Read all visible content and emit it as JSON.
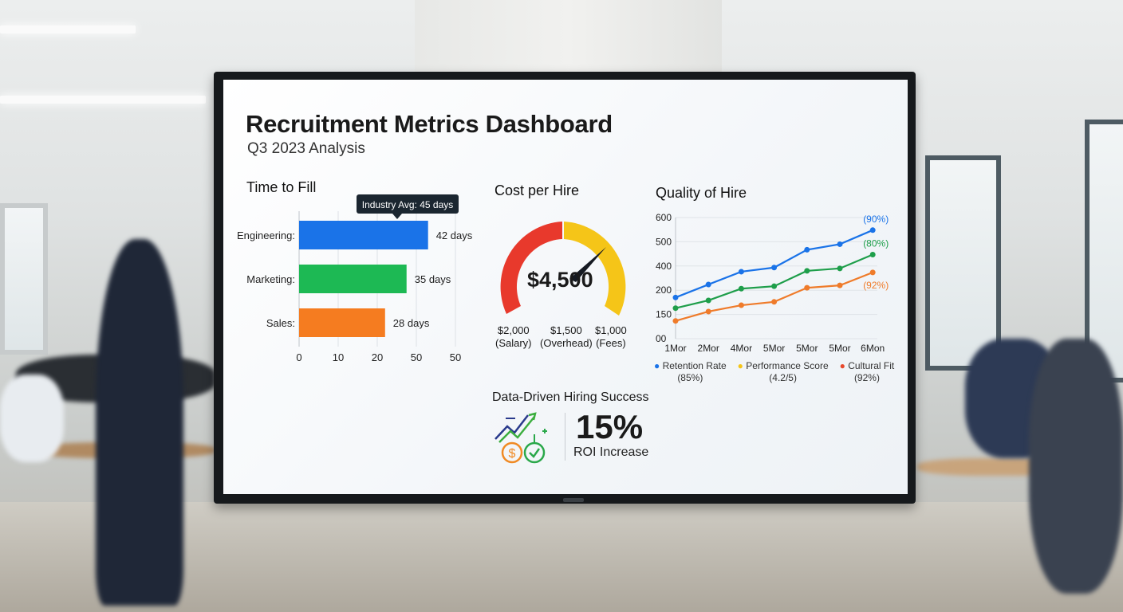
{
  "dashboard": {
    "title": "Recruitment Metrics Dashboard",
    "subtitle": "Q3 2023 Analysis"
  },
  "chart_data": [
    {
      "type": "bar",
      "orientation": "horizontal",
      "title": "Time to Fill",
      "categories": [
        "Engineering:",
        "Marketing:",
        "Sales:"
      ],
      "values": [
        42,
        35,
        28
      ],
      "value_labels": [
        "42 days",
        "35 days",
        "28 days"
      ],
      "colors": [
        "#1a73e8",
        "#1db954",
        "#f57c20"
      ],
      "x_tick_labels": [
        "0",
        "10",
        "20",
        "50",
        "50"
      ],
      "annotation": "Industry Avg: 45 days",
      "grid": true
    },
    {
      "type": "gauge",
      "title": "Cost per Hire",
      "value_label": "$4,500",
      "segments": [
        {
          "amount": "$2,000",
          "label": "(Salary)",
          "color": "#e8392c"
        },
        {
          "amount": "$1,500",
          "label": "(Overhead)",
          "color": "#f5c518"
        },
        {
          "amount": "$1,000",
          "label": "(Fees)",
          "color": "#f5c518"
        }
      ]
    },
    {
      "type": "line",
      "title": "Quality of Hire",
      "categories": [
        "1Mor",
        "2Mor",
        "4Mor",
        "5Mor",
        "5Mor",
        "5Mor",
        "6Mon"
      ],
      "y_tick_labels": [
        "600",
        "500",
        "400",
        "200",
        "150",
        "00"
      ],
      "y_tick_values": [
        600,
        500,
        400,
        200,
        150,
        0
      ],
      "grid": true,
      "series": [
        {
          "values": [
            185,
            247,
            353,
            387,
            467,
            490,
            548
          ],
          "color": "#1a73e8",
          "end_label": "(90%)"
        },
        {
          "values": [
            163,
            179,
            213,
            233,
            360,
            380,
            447
          ],
          "color": "#1e9e4a",
          "end_label": "(80%)"
        },
        {
          "values": [
            110,
            156,
            169,
            176,
            220,
            240,
            347
          ],
          "color": "#ef7b2a",
          "end_label": "(92%)"
        }
      ],
      "legend": [
        {
          "name": "Retention Rate",
          "sub": "(85%)",
          "color": "#1a73e8"
        },
        {
          "name": "Performance Score",
          "sub": "(4.2/5)",
          "color": "#f5c518"
        },
        {
          "name": "Cultural Fit",
          "sub": "(92%)",
          "color": "#e8492c"
        }
      ],
      "legend_position": "bottom"
    }
  ],
  "summary": {
    "heading": "Data-Driven Hiring Success",
    "value": "15%",
    "label": "ROI Increase",
    "icon": "growth-dollar-check-icon"
  }
}
